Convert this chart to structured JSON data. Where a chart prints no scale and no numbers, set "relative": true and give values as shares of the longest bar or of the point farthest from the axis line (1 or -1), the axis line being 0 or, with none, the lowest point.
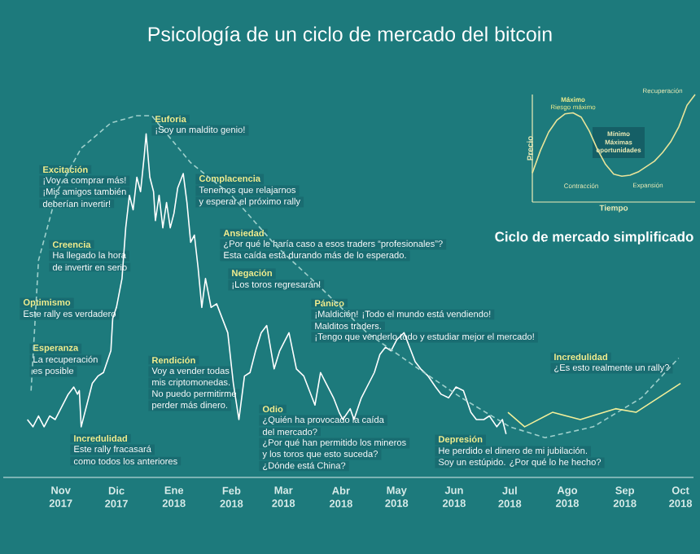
{
  "chart_data": [
    {
      "type": "line",
      "title": "Psicología de un ciclo de mercado del bitcoin",
      "relative": true,
      "xlim": [
        "2017-10-01",
        "2018-10-08"
      ],
      "xticks": [
        {
          "value": "2017-11-01",
          "label": "Nov 2017"
        },
        {
          "value": "2017-12-01",
          "label": "Dic 2017"
        },
        {
          "value": "2018-01-01",
          "label": "Ene 2018"
        },
        {
          "value": "2018-02-01",
          "label": "Feb 2018"
        },
        {
          "value": "2018-03-01",
          "label": "Mar 2018"
        },
        {
          "value": "2018-04-01",
          "label": "Abr 2018"
        },
        {
          "value": "2018-05-01",
          "label": "May 2018"
        },
        {
          "value": "2018-06-01",
          "label": "Jun 2018"
        },
        {
          "value": "2018-07-01",
          "label": "Jul 2018"
        },
        {
          "value": "2018-08-01",
          "label": "Ago 2018"
        },
        {
          "value": "2018-09-01",
          "label": "Sep 2018"
        },
        {
          "value": "2018-10-01",
          "label": "Oct 2018"
        }
      ],
      "series": [
        {
          "color": "#ffffff",
          "line_style": "solid",
          "x": [
            "2017-10-14",
            "2017-10-17",
            "2017-10-20",
            "2017-10-23",
            "2017-10-26",
            "2017-10-29",
            "2017-11-01",
            "2017-11-05",
            "2017-11-08",
            "2017-11-10",
            "2017-11-11",
            "2017-11-12",
            "2017-11-15",
            "2017-11-18",
            "2017-11-21",
            "2017-11-24",
            "2017-11-28",
            "2017-11-29",
            "2017-12-01",
            "2017-12-04",
            "2017-12-06",
            "2017-12-08",
            "2017-12-10",
            "2017-12-12",
            "2017-12-14",
            "2017-12-16",
            "2017-12-17",
            "2017-12-19",
            "2017-12-21",
            "2017-12-22",
            "2017-12-24",
            "2017-12-26",
            "2017-12-28",
            "2017-12-30",
            "2018-01-01",
            "2018-01-03",
            "2018-01-06",
            "2018-01-08",
            "2018-01-10",
            "2018-01-12",
            "2018-01-14",
            "2018-01-16",
            "2018-01-18",
            "2018-01-21",
            "2018-01-24",
            "2018-01-27",
            "2018-01-30",
            "2018-02-02",
            "2018-02-05",
            "2018-02-08",
            "2018-02-11",
            "2018-02-14",
            "2018-02-17",
            "2018-02-20",
            "2018-02-24",
            "2018-02-27",
            "2018-03-01",
            "2018-03-04",
            "2018-03-08",
            "2018-03-12",
            "2018-03-15",
            "2018-03-18",
            "2018-03-21",
            "2018-03-24",
            "2018-03-28",
            "2018-03-31",
            "2018-04-02",
            "2018-04-06",
            "2018-04-08",
            "2018-04-12",
            "2018-04-15",
            "2018-04-19",
            "2018-04-22",
            "2018-04-25",
            "2018-04-28",
            "2018-05-01",
            "2018-05-05",
            "2018-05-08",
            "2018-05-11",
            "2018-05-14",
            "2018-05-18",
            "2018-05-22",
            "2018-05-25",
            "2018-05-29",
            "2018-06-02",
            "2018-06-06",
            "2018-06-10",
            "2018-06-13",
            "2018-06-17",
            "2018-06-20",
            "2018-06-24",
            "2018-06-27",
            "2018-06-29"
          ],
          "values": [
            0.16,
            0.14,
            0.17,
            0.14,
            0.17,
            0.16,
            0.19,
            0.23,
            0.25,
            0.23,
            0.24,
            0.14,
            0.2,
            0.26,
            0.28,
            0.29,
            0.35,
            0.44,
            0.47,
            0.55,
            0.69,
            0.78,
            0.74,
            0.83,
            0.79,
            0.89,
            0.95,
            0.83,
            0.79,
            0.71,
            0.78,
            0.69,
            0.76,
            0.69,
            0.73,
            0.8,
            0.84,
            0.76,
            0.65,
            0.67,
            0.58,
            0.47,
            0.55,
            0.47,
            0.48,
            0.44,
            0.4,
            0.26,
            0.16,
            0.28,
            0.29,
            0.35,
            0.4,
            0.42,
            0.3,
            0.35,
            0.37,
            0.4,
            0.3,
            0.28,
            0.24,
            0.2,
            0.29,
            0.26,
            0.22,
            0.18,
            0.16,
            0.19,
            0.16,
            0.22,
            0.25,
            0.29,
            0.34,
            0.36,
            0.35,
            0.38,
            0.4,
            0.36,
            0.32,
            0.3,
            0.28,
            0.25,
            0.23,
            0.22,
            0.25,
            0.24,
            0.18,
            0.16,
            0.16,
            0.17,
            0.14,
            0.16,
            0.12
          ]
        },
        {
          "color": "#9fd0cc",
          "line_style": "dashed",
          "x": [
            "2017-10-16",
            "2017-10-20",
            "2017-10-30",
            "2017-11-12",
            "2017-11-28",
            "2017-12-12",
            "2017-12-20",
            "2018-01-10",
            "2018-02-01",
            "2018-02-25",
            "2018-03-20",
            "2018-04-15",
            "2018-05-10",
            "2018-06-05",
            "2018-07-01",
            "2018-07-20",
            "2018-08-15",
            "2018-09-10",
            "2018-09-30"
          ],
          "values": [
            0.24,
            0.6,
            0.79,
            0.91,
            0.98,
            1.0,
            1.0,
            0.87,
            0.78,
            0.64,
            0.53,
            0.4,
            0.31,
            0.22,
            0.14,
            0.11,
            0.14,
            0.22,
            0.33
          ]
        },
        {
          "color": "#f2ef9a",
          "line_style": "solid",
          "x": [
            "2018-06-30",
            "2018-07-09",
            "2018-07-24",
            "2018-08-08",
            "2018-08-27",
            "2018-09-07",
            "2018-10-01"
          ],
          "values": [
            0.18,
            0.14,
            0.18,
            0.16,
            0.19,
            0.18,
            0.26
          ]
        }
      ],
      "annotations": [
        "Euforia",
        "¡Soy un maldito genio!",
        "Excitación",
        "¡Voy a comprar más!",
        "¡Mis amigos también",
        "deberían invertir!",
        "Creencia",
        "Ha llegado la hora",
        "de invertir en serio",
        "Optimismo",
        "Este rally es verdadero",
        "Esperanza",
        "La recuperación",
        "es posible",
        "Incredulidad",
        "Este rally fracasará",
        "como todos los anteriores",
        "Complacencia",
        "Tenemos que relajarnos",
        "y esperar el próximo rally",
        "Ansiedad",
        "¿Por qué le haría caso a esos traders “profesionales”?",
        "Esta caída está durando más de lo esperado.",
        "Negación",
        "¡Los toros regresarán!",
        "Pánico",
        "¡Maldición! ¡Todo el mundo está vendiendo!",
        "Malditos traders.",
        "¡Tengo que venderlo todo y estudiar mejor el mercado!",
        "Rendición",
        "Voy a vender todas",
        "mis criptomonedas.",
        "No puedo permitirme",
        "perder más dinero.",
        "Odio",
        "¿Quién ha provocado la caída",
        "del mercado?",
        "¿Por qué han permitido los mineros",
        "y los toros que esto suceda?",
        "¿Dónde está China?",
        "Depresión",
        "He perdido el dinero de mi jubilación.",
        "Soy un estúpido. ¿Por qué lo he hecho?",
        "Incredulidad",
        "¿Es esto realmente un rally?"
      ]
    },
    {
      "type": "line",
      "title": "Ciclo de mercado simplificado",
      "relative": true,
      "xlabel": "Tiempo",
      "ylabel": "Precio",
      "categories": [
        null,
        null,
        null,
        null,
        null,
        null,
        null,
        null,
        null,
        null,
        null,
        null,
        null,
        null,
        null,
        null,
        null,
        null,
        null,
        null,
        null
      ],
      "series": [
        {
          "color": "#e8e49a",
          "values": [
            0.27,
            0.48,
            0.65,
            0.76,
            0.82,
            0.83,
            0.79,
            0.66,
            0.49,
            0.35,
            0.26,
            0.24,
            0.25,
            0.28,
            0.33,
            0.38,
            0.46,
            0.56,
            0.7,
            0.9,
            1.0
          ]
        }
      ],
      "annotations": [
        "Máximo",
        "Riesgo máximo",
        "Mínimo",
        "Máximas oportunidades",
        "Recuperación",
        "Contracción",
        "Expansión"
      ]
    }
  ]
}
